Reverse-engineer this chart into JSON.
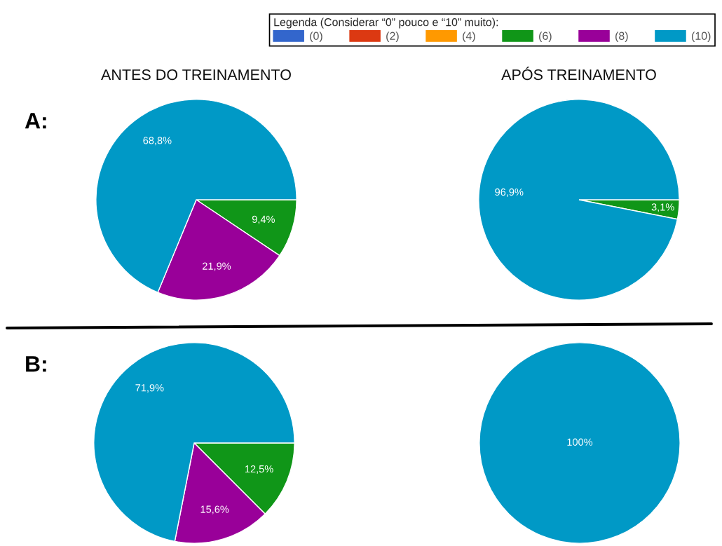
{
  "chart_data": [
    {
      "type": "pie",
      "title": "ANTES DO TREINAMENTO",
      "categories": [
        "(0)",
        "(2)",
        "(4)",
        "(6)",
        "(8)",
        "(10)"
      ],
      "values": [
        0,
        0,
        0,
        9.4,
        21.9,
        68.8
      ],
      "colors": [
        "#3366cc",
        "#dc3912",
        "#ff9900",
        "#109618",
        "#990099",
        "#0099c6"
      ],
      "value_labels": [
        null,
        null,
        null,
        "9,4%",
        "21,9%",
        "68,8%"
      ],
      "legend": "top right",
      "legend_title": "Legenda (Considerar “0” pouco e “10” muito):",
      "annotations": [
        "A:"
      ]
    },
    {
      "type": "pie",
      "title": "APÓS TREINAMENTO",
      "categories": [
        null,
        null,
        null,
        null,
        null,
        null
      ],
      "values": [
        0,
        0,
        0,
        3.1,
        0,
        96.9
      ],
      "colors": [
        "#3366cc",
        "#dc3912",
        "#ff9900",
        "#109618",
        "#990099",
        "#0099c6"
      ],
      "value_labels": [
        null,
        null,
        null,
        "3,1%",
        null,
        "96,9%"
      ]
    },
    {
      "type": "pie",
      "categories": [
        null,
        null,
        null,
        null,
        null,
        null
      ],
      "values": [
        0,
        0,
        0,
        12.5,
        15.6,
        71.9
      ],
      "colors": [
        "#3366cc",
        "#dc3912",
        "#ff9900",
        "#109618",
        "#990099",
        "#0099c6"
      ],
      "value_labels": [
        null,
        null,
        null,
        "12,5%",
        "15,6%",
        "71,9%"
      ],
      "annotations": [
        "B:"
      ]
    },
    {
      "type": "pie",
      "categories": [
        null,
        null,
        null,
        null,
        null,
        null
      ],
      "values": [
        0,
        0,
        0,
        0,
        0,
        100
      ],
      "colors": [
        "#3366cc",
        "#dc3912",
        "#ff9900",
        "#109618",
        "#990099",
        "#0099c6"
      ],
      "value_labels": [
        null,
        null,
        null,
        null,
        null,
        "100%"
      ]
    }
  ]
}
